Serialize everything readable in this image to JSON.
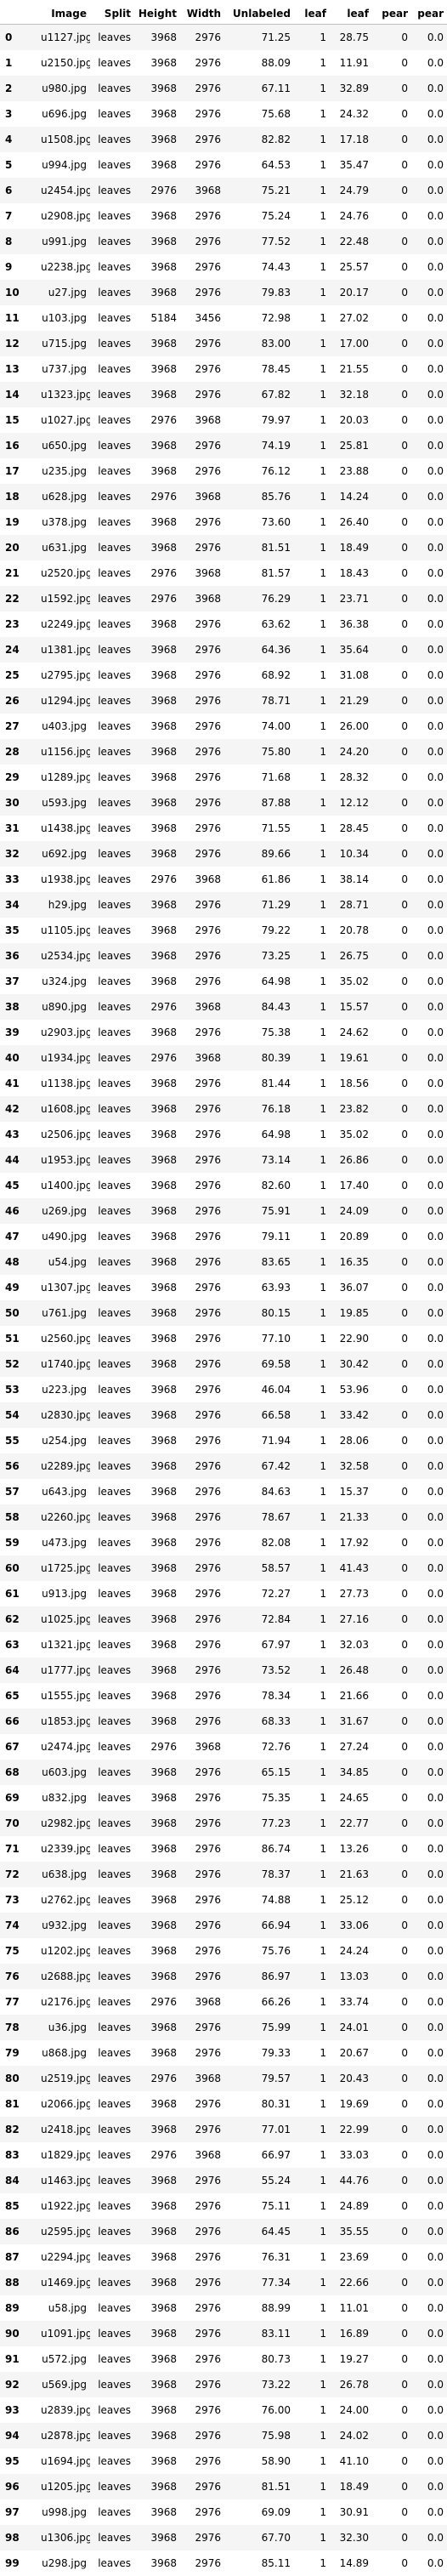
{
  "table": {
    "columns": [
      "",
      "Image",
      "Split",
      "Height",
      "Width",
      "Unlabeled",
      "leaf",
      "leaf",
      "pear",
      "pear"
    ],
    "rows": [
      [
        "0",
        "u1127.jpg",
        "leaves",
        "3968",
        "2976",
        "71.25",
        "1",
        "28.75",
        "0",
        "0.0"
      ],
      [
        "1",
        "u2150.jpg",
        "leaves",
        "3968",
        "2976",
        "88.09",
        "1",
        "11.91",
        "0",
        "0.0"
      ],
      [
        "2",
        "u980.jpg",
        "leaves",
        "3968",
        "2976",
        "67.11",
        "1",
        "32.89",
        "0",
        "0.0"
      ],
      [
        "3",
        "u696.jpg",
        "leaves",
        "3968",
        "2976",
        "75.68",
        "1",
        "24.32",
        "0",
        "0.0"
      ],
      [
        "4",
        "u1508.jpg",
        "leaves",
        "3968",
        "2976",
        "82.82",
        "1",
        "17.18",
        "0",
        "0.0"
      ],
      [
        "5",
        "u994.jpg",
        "leaves",
        "3968",
        "2976",
        "64.53",
        "1",
        "35.47",
        "0",
        "0.0"
      ],
      [
        "6",
        "u2454.jpg",
        "leaves",
        "2976",
        "3968",
        "75.21",
        "1",
        "24.79",
        "0",
        "0.0"
      ],
      [
        "7",
        "u2908.jpg",
        "leaves",
        "3968",
        "2976",
        "75.24",
        "1",
        "24.76",
        "0",
        "0.0"
      ],
      [
        "8",
        "u991.jpg",
        "leaves",
        "3968",
        "2976",
        "77.52",
        "1",
        "22.48",
        "0",
        "0.0"
      ],
      [
        "9",
        "u2238.jpg",
        "leaves",
        "3968",
        "2976",
        "74.43",
        "1",
        "25.57",
        "0",
        "0.0"
      ],
      [
        "10",
        "u27.jpg",
        "leaves",
        "3968",
        "2976",
        "79.83",
        "1",
        "20.17",
        "0",
        "0.0"
      ],
      [
        "11",
        "u103.jpg",
        "leaves",
        "5184",
        "3456",
        "72.98",
        "1",
        "27.02",
        "0",
        "0.0"
      ],
      [
        "12",
        "u715.jpg",
        "leaves",
        "3968",
        "2976",
        "83.00",
        "1",
        "17.00",
        "0",
        "0.0"
      ],
      [
        "13",
        "u737.jpg",
        "leaves",
        "3968",
        "2976",
        "78.45",
        "1",
        "21.55",
        "0",
        "0.0"
      ],
      [
        "14",
        "u1323.jpg",
        "leaves",
        "3968",
        "2976",
        "67.82",
        "1",
        "32.18",
        "0",
        "0.0"
      ],
      [
        "15",
        "u1027.jpg",
        "leaves",
        "2976",
        "3968",
        "79.97",
        "1",
        "20.03",
        "0",
        "0.0"
      ],
      [
        "16",
        "u650.jpg",
        "leaves",
        "3968",
        "2976",
        "74.19",
        "1",
        "25.81",
        "0",
        "0.0"
      ],
      [
        "17",
        "u235.jpg",
        "leaves",
        "3968",
        "2976",
        "76.12",
        "1",
        "23.88",
        "0",
        "0.0"
      ],
      [
        "18",
        "u628.jpg",
        "leaves",
        "2976",
        "3968",
        "85.76",
        "1",
        "14.24",
        "0",
        "0.0"
      ],
      [
        "19",
        "u378.jpg",
        "leaves",
        "3968",
        "2976",
        "73.60",
        "1",
        "26.40",
        "0",
        "0.0"
      ],
      [
        "20",
        "u631.jpg",
        "leaves",
        "3968",
        "2976",
        "81.51",
        "1",
        "18.49",
        "0",
        "0.0"
      ],
      [
        "21",
        "u2520.jpg",
        "leaves",
        "2976",
        "3968",
        "81.57",
        "1",
        "18.43",
        "0",
        "0.0"
      ],
      [
        "22",
        "u1592.jpg",
        "leaves",
        "2976",
        "3968",
        "76.29",
        "1",
        "23.71",
        "0",
        "0.0"
      ],
      [
        "23",
        "u2249.jpg",
        "leaves",
        "3968",
        "2976",
        "63.62",
        "1",
        "36.38",
        "0",
        "0.0"
      ],
      [
        "24",
        "u1381.jpg",
        "leaves",
        "3968",
        "2976",
        "64.36",
        "1",
        "35.64",
        "0",
        "0.0"
      ],
      [
        "25",
        "u2795.jpg",
        "leaves",
        "3968",
        "2976",
        "68.92",
        "1",
        "31.08",
        "0",
        "0.0"
      ],
      [
        "26",
        "u1294.jpg",
        "leaves",
        "3968",
        "2976",
        "78.71",
        "1",
        "21.29",
        "0",
        "0.0"
      ],
      [
        "27",
        "u403.jpg",
        "leaves",
        "3968",
        "2976",
        "74.00",
        "1",
        "26.00",
        "0",
        "0.0"
      ],
      [
        "28",
        "u1156.jpg",
        "leaves",
        "3968",
        "2976",
        "75.80",
        "1",
        "24.20",
        "0",
        "0.0"
      ],
      [
        "29",
        "u1289.jpg",
        "leaves",
        "3968",
        "2976",
        "71.68",
        "1",
        "28.32",
        "0",
        "0.0"
      ],
      [
        "30",
        "u593.jpg",
        "leaves",
        "3968",
        "2976",
        "87.88",
        "1",
        "12.12",
        "0",
        "0.0"
      ],
      [
        "31",
        "u1438.jpg",
        "leaves",
        "3968",
        "2976",
        "71.55",
        "1",
        "28.45",
        "0",
        "0.0"
      ],
      [
        "32",
        "u692.jpg",
        "leaves",
        "3968",
        "2976",
        "89.66",
        "1",
        "10.34",
        "0",
        "0.0"
      ],
      [
        "33",
        "u1938.jpg",
        "leaves",
        "2976",
        "3968",
        "61.86",
        "1",
        "38.14",
        "0",
        "0.0"
      ],
      [
        "34",
        "h29.jpg",
        "leaves",
        "3968",
        "2976",
        "71.29",
        "1",
        "28.71",
        "0",
        "0.0"
      ],
      [
        "35",
        "u1105.jpg",
        "leaves",
        "3968",
        "2976",
        "79.22",
        "1",
        "20.78",
        "0",
        "0.0"
      ],
      [
        "36",
        "u2534.jpg",
        "leaves",
        "3968",
        "2976",
        "73.25",
        "1",
        "26.75",
        "0",
        "0.0"
      ],
      [
        "37",
        "u324.jpg",
        "leaves",
        "3968",
        "2976",
        "64.98",
        "1",
        "35.02",
        "0",
        "0.0"
      ],
      [
        "38",
        "u890.jpg",
        "leaves",
        "2976",
        "3968",
        "84.43",
        "1",
        "15.57",
        "0",
        "0.0"
      ],
      [
        "39",
        "u2903.jpg",
        "leaves",
        "3968",
        "2976",
        "75.38",
        "1",
        "24.62",
        "0",
        "0.0"
      ],
      [
        "40",
        "u1934.jpg",
        "leaves",
        "2976",
        "3968",
        "80.39",
        "1",
        "19.61",
        "0",
        "0.0"
      ],
      [
        "41",
        "u1138.jpg",
        "leaves",
        "3968",
        "2976",
        "81.44",
        "1",
        "18.56",
        "0",
        "0.0"
      ],
      [
        "42",
        "u1608.jpg",
        "leaves",
        "3968",
        "2976",
        "76.18",
        "1",
        "23.82",
        "0",
        "0.0"
      ],
      [
        "43",
        "u2506.jpg",
        "leaves",
        "3968",
        "2976",
        "64.98",
        "1",
        "35.02",
        "0",
        "0.0"
      ],
      [
        "44",
        "u1953.jpg",
        "leaves",
        "3968",
        "2976",
        "73.14",
        "1",
        "26.86",
        "0",
        "0.0"
      ],
      [
        "45",
        "u1400.jpg",
        "leaves",
        "3968",
        "2976",
        "82.60",
        "1",
        "17.40",
        "0",
        "0.0"
      ],
      [
        "46",
        "u269.jpg",
        "leaves",
        "3968",
        "2976",
        "75.91",
        "1",
        "24.09",
        "0",
        "0.0"
      ],
      [
        "47",
        "u490.jpg",
        "leaves",
        "3968",
        "2976",
        "79.11",
        "1",
        "20.89",
        "0",
        "0.0"
      ],
      [
        "48",
        "u54.jpg",
        "leaves",
        "3968",
        "2976",
        "83.65",
        "1",
        "16.35",
        "0",
        "0.0"
      ],
      [
        "49",
        "u1307.jpg",
        "leaves",
        "3968",
        "2976",
        "63.93",
        "1",
        "36.07",
        "0",
        "0.0"
      ],
      [
        "50",
        "u761.jpg",
        "leaves",
        "3968",
        "2976",
        "80.15",
        "1",
        "19.85",
        "0",
        "0.0"
      ],
      [
        "51",
        "u2560.jpg",
        "leaves",
        "3968",
        "2976",
        "77.10",
        "1",
        "22.90",
        "0",
        "0.0"
      ],
      [
        "52",
        "u1740.jpg",
        "leaves",
        "3968",
        "2976",
        "69.58",
        "1",
        "30.42",
        "0",
        "0.0"
      ],
      [
        "53",
        "u223.jpg",
        "leaves",
        "3968",
        "2976",
        "46.04",
        "1",
        "53.96",
        "0",
        "0.0"
      ],
      [
        "54",
        "u2830.jpg",
        "leaves",
        "3968",
        "2976",
        "66.58",
        "1",
        "33.42",
        "0",
        "0.0"
      ],
      [
        "55",
        "u254.jpg",
        "leaves",
        "3968",
        "2976",
        "71.94",
        "1",
        "28.06",
        "0",
        "0.0"
      ],
      [
        "56",
        "u2289.jpg",
        "leaves",
        "3968",
        "2976",
        "67.42",
        "1",
        "32.58",
        "0",
        "0.0"
      ],
      [
        "57",
        "u643.jpg",
        "leaves",
        "3968",
        "2976",
        "84.63",
        "1",
        "15.37",
        "0",
        "0.0"
      ],
      [
        "58",
        "u2260.jpg",
        "leaves",
        "3968",
        "2976",
        "78.67",
        "1",
        "21.33",
        "0",
        "0.0"
      ],
      [
        "59",
        "u473.jpg",
        "leaves",
        "3968",
        "2976",
        "82.08",
        "1",
        "17.92",
        "0",
        "0.0"
      ],
      [
        "60",
        "u1725.jpg",
        "leaves",
        "3968",
        "2976",
        "58.57",
        "1",
        "41.43",
        "0",
        "0.0"
      ],
      [
        "61",
        "u913.jpg",
        "leaves",
        "3968",
        "2976",
        "72.27",
        "1",
        "27.73",
        "0",
        "0.0"
      ],
      [
        "62",
        "u1025.jpg",
        "leaves",
        "3968",
        "2976",
        "72.84",
        "1",
        "27.16",
        "0",
        "0.0"
      ],
      [
        "63",
        "u1321.jpg",
        "leaves",
        "3968",
        "2976",
        "67.97",
        "1",
        "32.03",
        "0",
        "0.0"
      ],
      [
        "64",
        "u1777.jpg",
        "leaves",
        "3968",
        "2976",
        "73.52",
        "1",
        "26.48",
        "0",
        "0.0"
      ],
      [
        "65",
        "u1555.jpg",
        "leaves",
        "3968",
        "2976",
        "78.34",
        "1",
        "21.66",
        "0",
        "0.0"
      ],
      [
        "66",
        "u1853.jpg",
        "leaves",
        "3968",
        "2976",
        "68.33",
        "1",
        "31.67",
        "0",
        "0.0"
      ],
      [
        "67",
        "u2474.jpg",
        "leaves",
        "2976",
        "3968",
        "72.76",
        "1",
        "27.24",
        "0",
        "0.0"
      ],
      [
        "68",
        "u603.jpg",
        "leaves",
        "3968",
        "2976",
        "65.15",
        "1",
        "34.85",
        "0",
        "0.0"
      ],
      [
        "69",
        "u832.jpg",
        "leaves",
        "3968",
        "2976",
        "75.35",
        "1",
        "24.65",
        "0",
        "0.0"
      ],
      [
        "70",
        "u2982.jpg",
        "leaves",
        "3968",
        "2976",
        "77.23",
        "1",
        "22.77",
        "0",
        "0.0"
      ],
      [
        "71",
        "u2339.jpg",
        "leaves",
        "3968",
        "2976",
        "86.74",
        "1",
        "13.26",
        "0",
        "0.0"
      ],
      [
        "72",
        "u638.jpg",
        "leaves",
        "3968",
        "2976",
        "78.37",
        "1",
        "21.63",
        "0",
        "0.0"
      ],
      [
        "73",
        "u2762.jpg",
        "leaves",
        "3968",
        "2976",
        "74.88",
        "1",
        "25.12",
        "0",
        "0.0"
      ],
      [
        "74",
        "u932.jpg",
        "leaves",
        "3968",
        "2976",
        "66.94",
        "1",
        "33.06",
        "0",
        "0.0"
      ],
      [
        "75",
        "u1202.jpg",
        "leaves",
        "3968",
        "2976",
        "75.76",
        "1",
        "24.24",
        "0",
        "0.0"
      ],
      [
        "76",
        "u2688.jpg",
        "leaves",
        "3968",
        "2976",
        "86.97",
        "1",
        "13.03",
        "0",
        "0.0"
      ],
      [
        "77",
        "u2176.jpg",
        "leaves",
        "2976",
        "3968",
        "66.26",
        "1",
        "33.74",
        "0",
        "0.0"
      ],
      [
        "78",
        "u36.jpg",
        "leaves",
        "3968",
        "2976",
        "75.99",
        "1",
        "24.01",
        "0",
        "0.0"
      ],
      [
        "79",
        "u868.jpg",
        "leaves",
        "3968",
        "2976",
        "79.33",
        "1",
        "20.67",
        "0",
        "0.0"
      ],
      [
        "80",
        "u2519.jpg",
        "leaves",
        "2976",
        "3968",
        "79.57",
        "1",
        "20.43",
        "0",
        "0.0"
      ],
      [
        "81",
        "u2066.jpg",
        "leaves",
        "3968",
        "2976",
        "80.31",
        "1",
        "19.69",
        "0",
        "0.0"
      ],
      [
        "82",
        "u2418.jpg",
        "leaves",
        "3968",
        "2976",
        "77.01",
        "1",
        "22.99",
        "0",
        "0.0"
      ],
      [
        "83",
        "u1829.jpg",
        "leaves",
        "2976",
        "3968",
        "66.97",
        "1",
        "33.03",
        "0",
        "0.0"
      ],
      [
        "84",
        "u1463.jpg",
        "leaves",
        "3968",
        "2976",
        "55.24",
        "1",
        "44.76",
        "0",
        "0.0"
      ],
      [
        "85",
        "u1922.jpg",
        "leaves",
        "3968",
        "2976",
        "75.11",
        "1",
        "24.89",
        "0",
        "0.0"
      ],
      [
        "86",
        "u2595.jpg",
        "leaves",
        "3968",
        "2976",
        "64.45",
        "1",
        "35.55",
        "0",
        "0.0"
      ],
      [
        "87",
        "u2294.jpg",
        "leaves",
        "3968",
        "2976",
        "76.31",
        "1",
        "23.69",
        "0",
        "0.0"
      ],
      [
        "88",
        "u1469.jpg",
        "leaves",
        "3968",
        "2976",
        "77.34",
        "1",
        "22.66",
        "0",
        "0.0"
      ],
      [
        "89",
        "u58.jpg",
        "leaves",
        "3968",
        "2976",
        "88.99",
        "1",
        "11.01",
        "0",
        "0.0"
      ],
      [
        "90",
        "u1091.jpg",
        "leaves",
        "3968",
        "2976",
        "83.11",
        "1",
        "16.89",
        "0",
        "0.0"
      ],
      [
        "91",
        "u572.jpg",
        "leaves",
        "3968",
        "2976",
        "80.73",
        "1",
        "19.27",
        "0",
        "0.0"
      ],
      [
        "92",
        "u569.jpg",
        "leaves",
        "3968",
        "2976",
        "73.22",
        "1",
        "26.78",
        "0",
        "0.0"
      ],
      [
        "93",
        "u2839.jpg",
        "leaves",
        "3968",
        "2976",
        "76.00",
        "1",
        "24.00",
        "0",
        "0.0"
      ],
      [
        "94",
        "u2878.jpg",
        "leaves",
        "3968",
        "2976",
        "75.98",
        "1",
        "24.02",
        "0",
        "0.0"
      ],
      [
        "95",
        "u1694.jpg",
        "leaves",
        "3968",
        "2976",
        "58.90",
        "1",
        "41.10",
        "0",
        "0.0"
      ],
      [
        "96",
        "u1205.jpg",
        "leaves",
        "3968",
        "2976",
        "81.51",
        "1",
        "18.49",
        "0",
        "0.0"
      ],
      [
        "97",
        "u998.jpg",
        "leaves",
        "3968",
        "2976",
        "69.09",
        "1",
        "30.91",
        "0",
        "0.0"
      ],
      [
        "98",
        "u1306.jpg",
        "leaves",
        "3968",
        "2976",
        "67.70",
        "1",
        "32.30",
        "0",
        "0.0"
      ],
      [
        "99",
        "u298.jpg",
        "leaves",
        "3968",
        "2976",
        "85.11",
        "1",
        "14.89",
        "0",
        "0.0"
      ]
    ]
  }
}
